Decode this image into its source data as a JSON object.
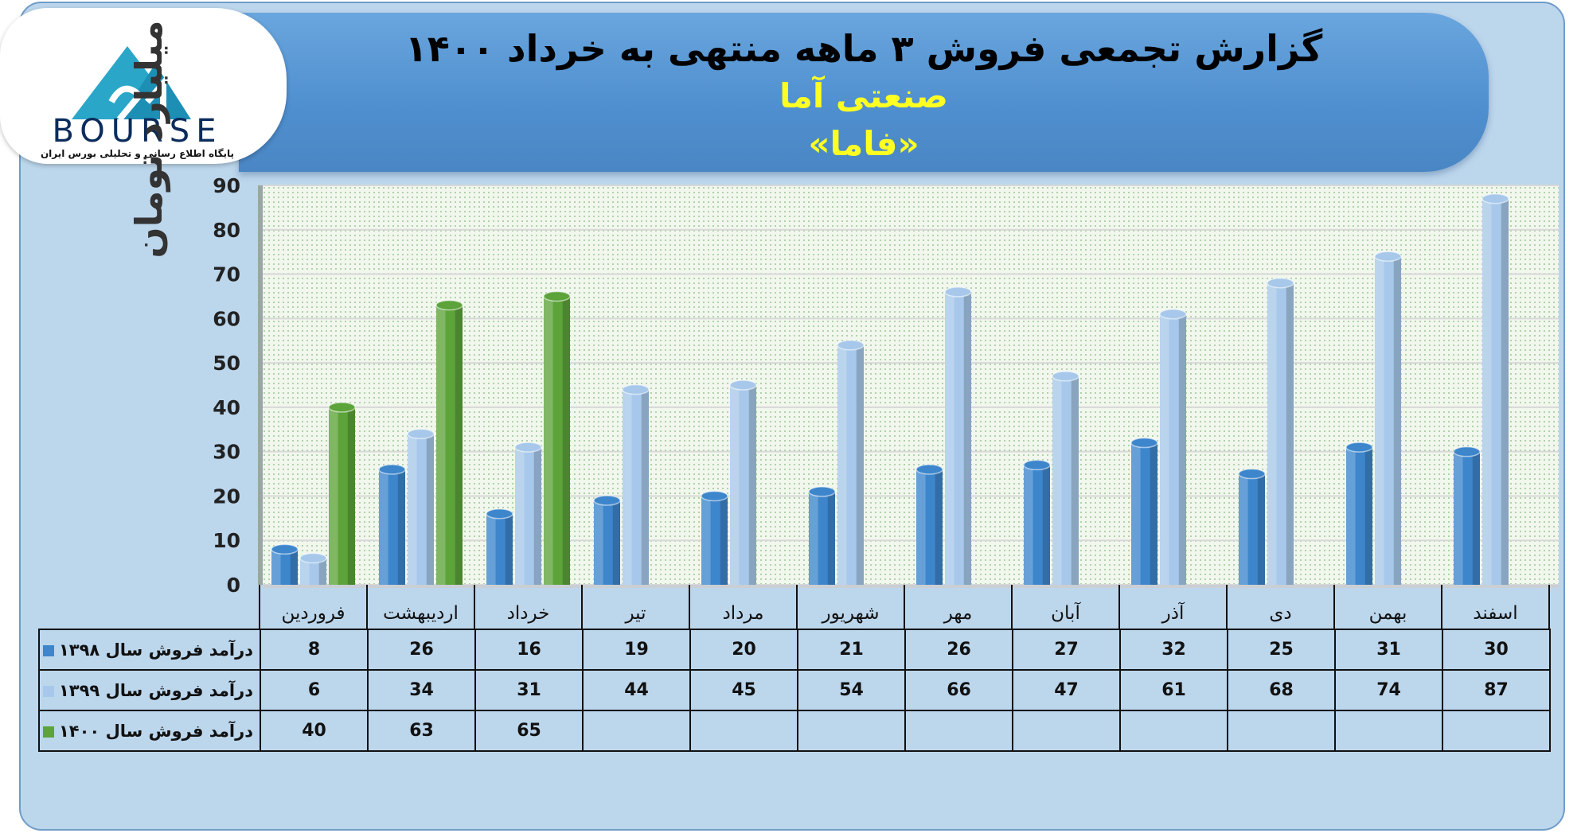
{
  "header": {
    "title": "گزارش تجمعی فروش ۳ ماهه منتهی به خرداد ۱۴۰۰",
    "subtitle": "صنعتی آما",
    "company": "«فاما»"
  },
  "logo": {
    "text": "BOURSE",
    "tagline": "پایگاه اطلاع رسانی و تحلیلی بورس ایران"
  },
  "colors": {
    "series_1398": "#3d86cc",
    "series_1399": "#a7c8ea",
    "series_1400": "#5ca33a",
    "banner": "#5595d4",
    "background": "#bcd6ec"
  },
  "chart_data": {
    "type": "bar",
    "ylabel": "میلیارد تومان",
    "ylim": [
      0,
      90
    ],
    "yticks": [
      "0",
      "10",
      "20",
      "30",
      "40",
      "50",
      "60",
      "70",
      "80",
      "90"
    ],
    "grid": true,
    "categories": [
      "فروردین",
      "اردیبهشت",
      "خرداد",
      "تیر",
      "مرداد",
      "شهریور",
      "مهر",
      "آبان",
      "آذر",
      "دی",
      "بهمن",
      "اسفند"
    ],
    "series": [
      {
        "name": "درآمد فروش سال ۱۳۹۸",
        "values": [
          8,
          26,
          16,
          19,
          20,
          21,
          26,
          27,
          32,
          25,
          31,
          30
        ]
      },
      {
        "name": "درآمد فروش سال ۱۳۹۹",
        "values": [
          6,
          34,
          31,
          44,
          45,
          54,
          66,
          47,
          61,
          68,
          74,
          87
        ]
      },
      {
        "name": "درآمد فروش سال ۱۴۰۰",
        "values": [
          40,
          63,
          65,
          null,
          null,
          null,
          null,
          null,
          null,
          null,
          null,
          null
        ]
      }
    ]
  }
}
